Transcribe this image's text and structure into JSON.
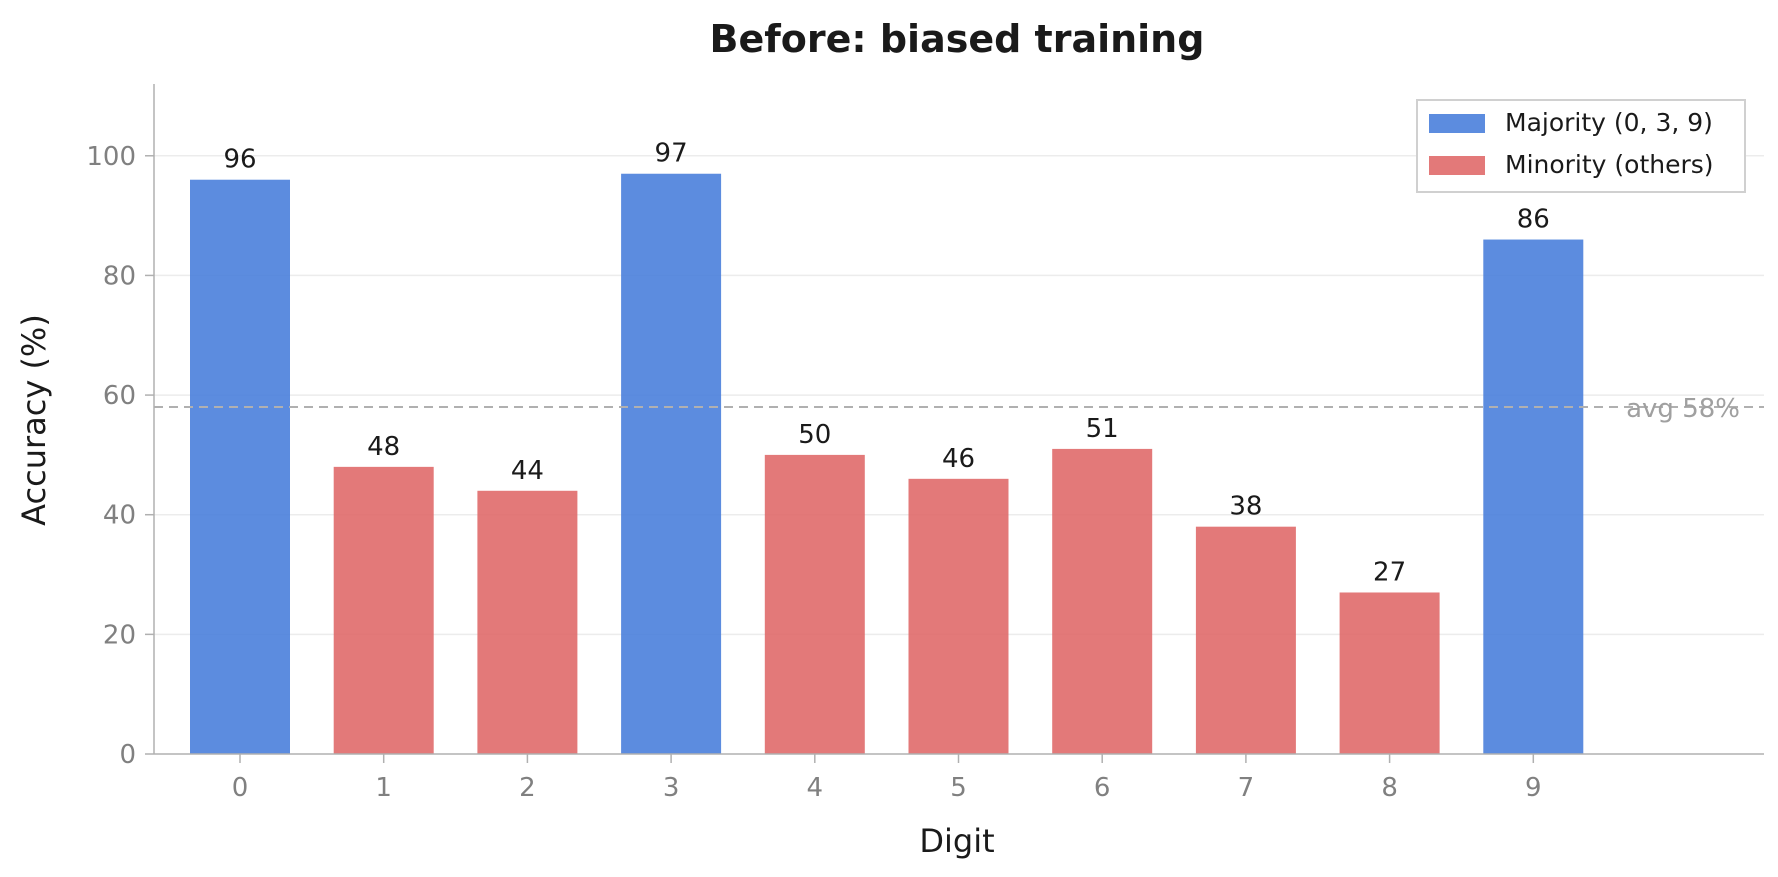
{
  "chart_data": {
    "type": "bar",
    "title": "Before: biased training",
    "xlabel": "Digit",
    "ylabel": "Accuracy (%)",
    "categories": [
      "0",
      "1",
      "2",
      "3",
      "4",
      "5",
      "6",
      "7",
      "8",
      "9"
    ],
    "values": [
      96,
      48,
      44,
      97,
      50,
      46,
      51,
      38,
      27,
      86
    ],
    "groups": [
      "majority",
      "minority",
      "minority",
      "majority",
      "minority",
      "minority",
      "minority",
      "minority",
      "minority",
      "majority"
    ],
    "ylim": [
      0,
      112
    ],
    "yticks": [
      "0",
      "20",
      "40",
      "60",
      "80",
      "100"
    ],
    "grid": true,
    "legend_position": "top-right",
    "legend": [
      {
        "key": "majority",
        "label": "Majority (0, 3, 9)",
        "color": "#4a7fdb"
      },
      {
        "key": "minority",
        "label": "Minority (others)",
        "color": "#e06a6a"
      }
    ],
    "reference_line": {
      "value": 58,
      "label": "avg 58%",
      "color": "#b0b0b0"
    }
  }
}
